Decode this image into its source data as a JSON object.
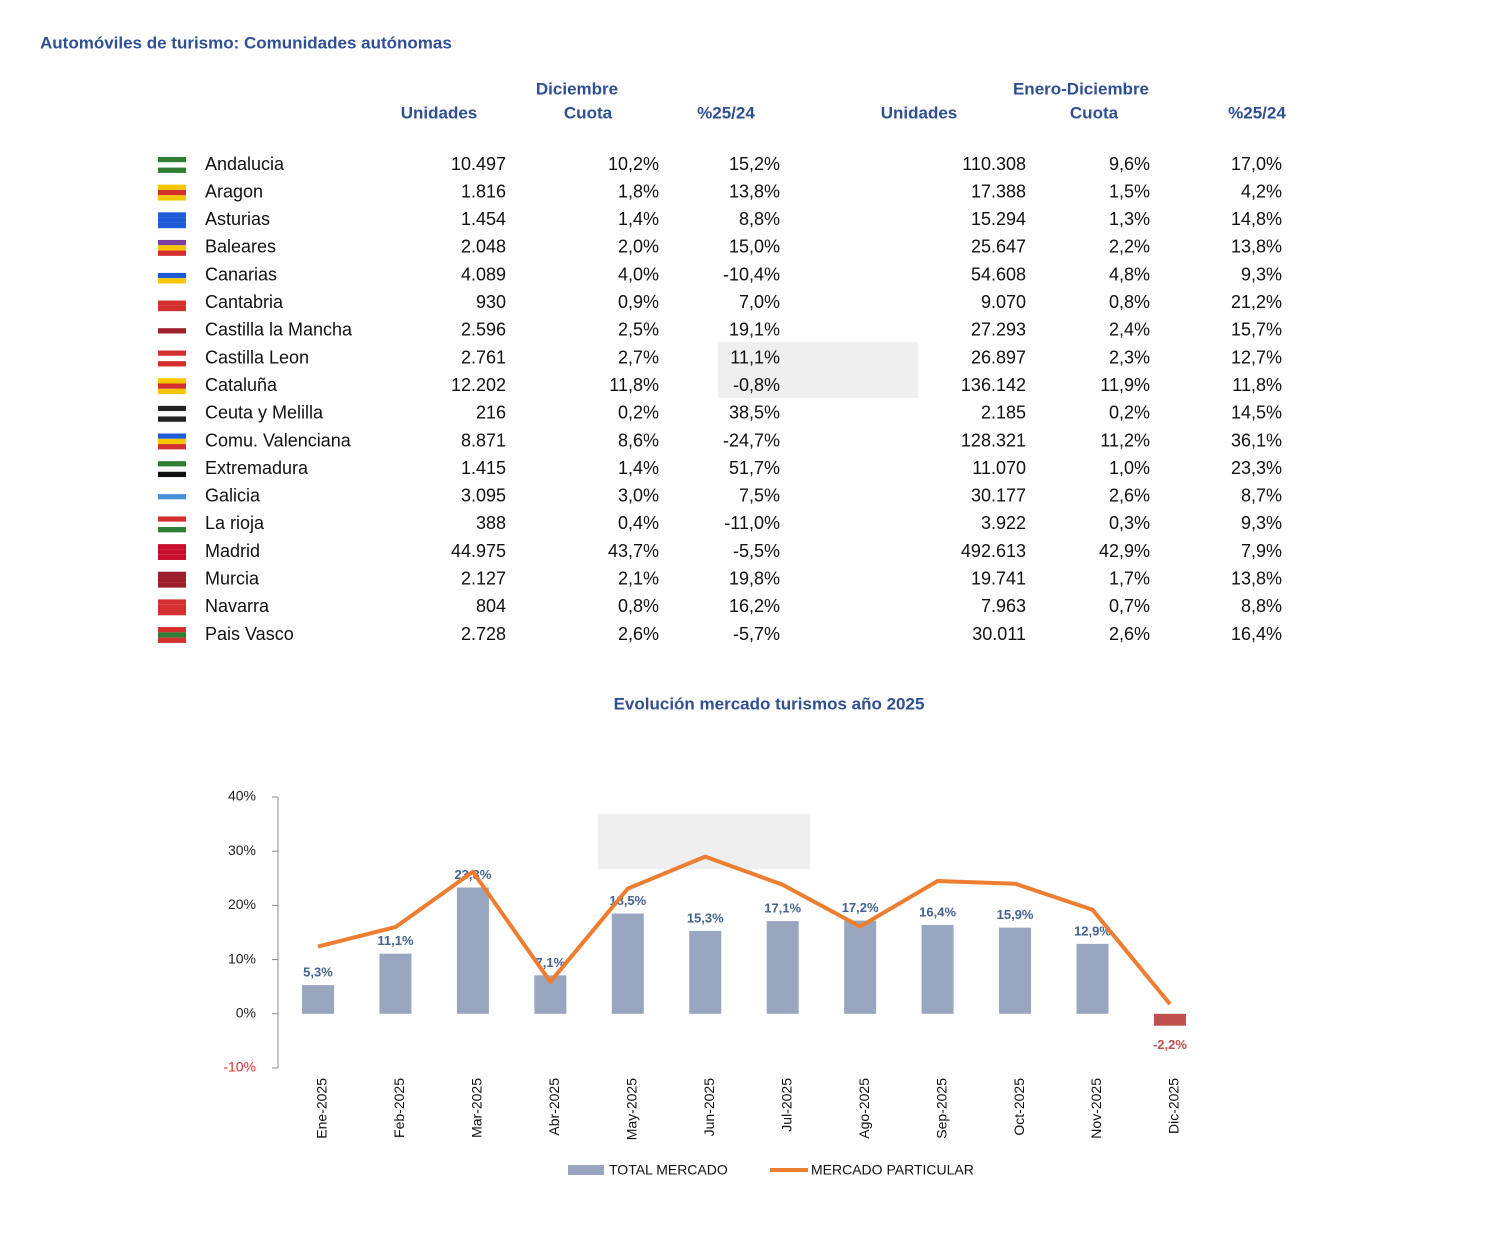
{
  "header": {
    "title": "Automóviles de turismo: Comunidades autónomas"
  },
  "table": {
    "groups": [
      {
        "title": "Diciembre",
        "columns": [
          "Unidades",
          "Cuota",
          "%25/24"
        ]
      },
      {
        "title": "Enero-Diciembre",
        "columns": [
          "Unidades",
          "Cuota",
          "%25/24"
        ]
      }
    ],
    "rows": [
      {
        "name": "Andalucia",
        "cells": [
          "10.497",
          "10,2%",
          "15,2%",
          "110.308",
          "9,6%",
          "17,0%"
        ]
      },
      {
        "name": "Aragon",
        "cells": [
          "1.816",
          "1,8%",
          "13,8%",
          "17.388",
          "1,5%",
          "4,2%"
        ]
      },
      {
        "name": "Asturias",
        "cells": [
          "1.454",
          "1,4%",
          "8,8%",
          "15.294",
          "1,3%",
          "14,8%"
        ]
      },
      {
        "name": "Baleares",
        "cells": [
          "2.048",
          "2,0%",
          "15,0%",
          "25.647",
          "2,2%",
          "13,8%"
        ]
      },
      {
        "name": "Canarias",
        "cells": [
          "4.089",
          "4,0%",
          "-10,4%",
          "54.608",
          "4,8%",
          "9,3%"
        ]
      },
      {
        "name": "Cantabria",
        "cells": [
          "930",
          "0,9%",
          "7,0%",
          "9.070",
          "0,8%",
          "21,2%"
        ]
      },
      {
        "name": "Castilla la Mancha",
        "cells": [
          "2.596",
          "2,5%",
          "19,1%",
          "27.293",
          "2,4%",
          "15,7%"
        ]
      },
      {
        "name": "Castilla Leon",
        "cells": [
          "2.761",
          "2,7%",
          "11,1%",
          "26.897",
          "2,3%",
          "12,7%"
        ]
      },
      {
        "name": "Cataluña",
        "cells": [
          "12.202",
          "11,8%",
          "-0,8%",
          "136.142",
          "11,9%",
          "11,8%"
        ]
      },
      {
        "name": "Ceuta y Melilla",
        "cells": [
          "216",
          "0,2%",
          "38,5%",
          "2.185",
          "0,2%",
          "14,5%"
        ]
      },
      {
        "name": "Comu. Valenciana",
        "cells": [
          "8.871",
          "8,6%",
          "-24,7%",
          "128.321",
          "11,2%",
          "36,1%"
        ]
      },
      {
        "name": "Extremadura",
        "cells": [
          "1.415",
          "1,4%",
          "51,7%",
          "11.070",
          "1,0%",
          "23,3%"
        ]
      },
      {
        "name": "Galicia",
        "cells": [
          "3.095",
          "3,0%",
          "7,5%",
          "30.177",
          "2,6%",
          "8,7%"
        ]
      },
      {
        "name": "La rioja",
        "cells": [
          "388",
          "0,4%",
          "-11,0%",
          "3.922",
          "0,3%",
          "9,3%"
        ]
      },
      {
        "name": "Madrid",
        "cells": [
          "44.975",
          "43,7%",
          "-5,5%",
          "492.613",
          "42,9%",
          "7,9%"
        ]
      },
      {
        "name": "Murcia",
        "cells": [
          "2.127",
          "2,1%",
          "19,8%",
          "19.741",
          "1,7%",
          "13,8%"
        ]
      },
      {
        "name": "Navarra",
        "cells": [
          "804",
          "0,8%",
          "16,2%",
          "7.963",
          "0,7%",
          "8,8%"
        ]
      },
      {
        "name": "Pais Vasco",
        "cells": [
          "2.728",
          "2,6%",
          "-5,7%",
          "30.011",
          "2,6%",
          "16,4%"
        ]
      }
    ]
  },
  "chart_data": {
    "type": "combo",
    "title": "Evolución mercado turismos año 2025",
    "categories": [
      "Ene-2025",
      "Feb-2025",
      "Mar-2025",
      "Abr-2025",
      "May-2025",
      "Jun-2025",
      "Jul-2025",
      "Ago-2025",
      "Sep-2025",
      "Oct-2025",
      "Nov-2025",
      "Dic-2025"
    ],
    "series": [
      {
        "name": "TOTAL MERCADO",
        "type": "bar",
        "color": "#98a6bf",
        "values": [
          5.3,
          11.1,
          23.3,
          7.1,
          18.5,
          15.3,
          17.1,
          17.2,
          16.4,
          15.9,
          12.9,
          -2.2
        ],
        "value_labels": [
          "5,3%",
          "11,1%",
          "23,3%",
          "7,1%",
          "18,5%",
          "15,3%",
          "17,1%",
          "17,2%",
          "16,4%",
          "15,9%",
          "12,9%",
          "-2,2%"
        ]
      },
      {
        "name": "MERCADO PARTICULAR",
        "type": "line",
        "color": "#ed7d31",
        "values": [
          12.4,
          16.0,
          26.2,
          5.9,
          23.1,
          29.0,
          23.8,
          16.1,
          24.5,
          24.0,
          19.2,
          1.8
        ]
      }
    ],
    "negative_color": "#c0504d",
    "ylim": [
      -10,
      40
    ],
    "yticks": [
      {
        "value": -10,
        "label": "-10%"
      },
      {
        "value": 0,
        "label": "0%"
      },
      {
        "value": 10,
        "label": "10%"
      },
      {
        "value": 20,
        "label": "20%"
      },
      {
        "value": 30,
        "label": "30%"
      },
      {
        "value": 40,
        "label": "40%"
      }
    ]
  }
}
